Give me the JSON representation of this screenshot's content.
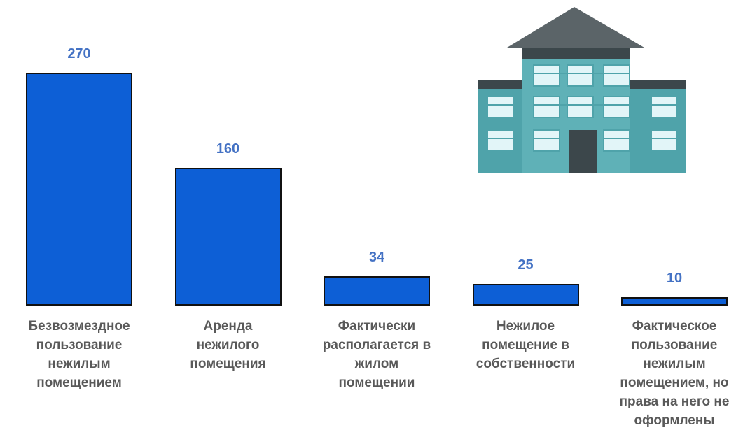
{
  "chart_data": {
    "type": "bar",
    "categories": [
      "Безвозмездное\nпользование\nнежилым\nпомещением",
      "Аренда\nнежилого\nпомещения",
      "Фактически\nрасполагается в\nжилом\nпомещении",
      "Нежилое\nпомещение в\nсобственности",
      "Фактическое\nпользование\nнежилым\nпомещением, но\nправа на него не\nоформлены"
    ],
    "values": [
      270,
      160,
      34,
      25,
      10
    ],
    "color": "#0d5fd6"
  }
}
